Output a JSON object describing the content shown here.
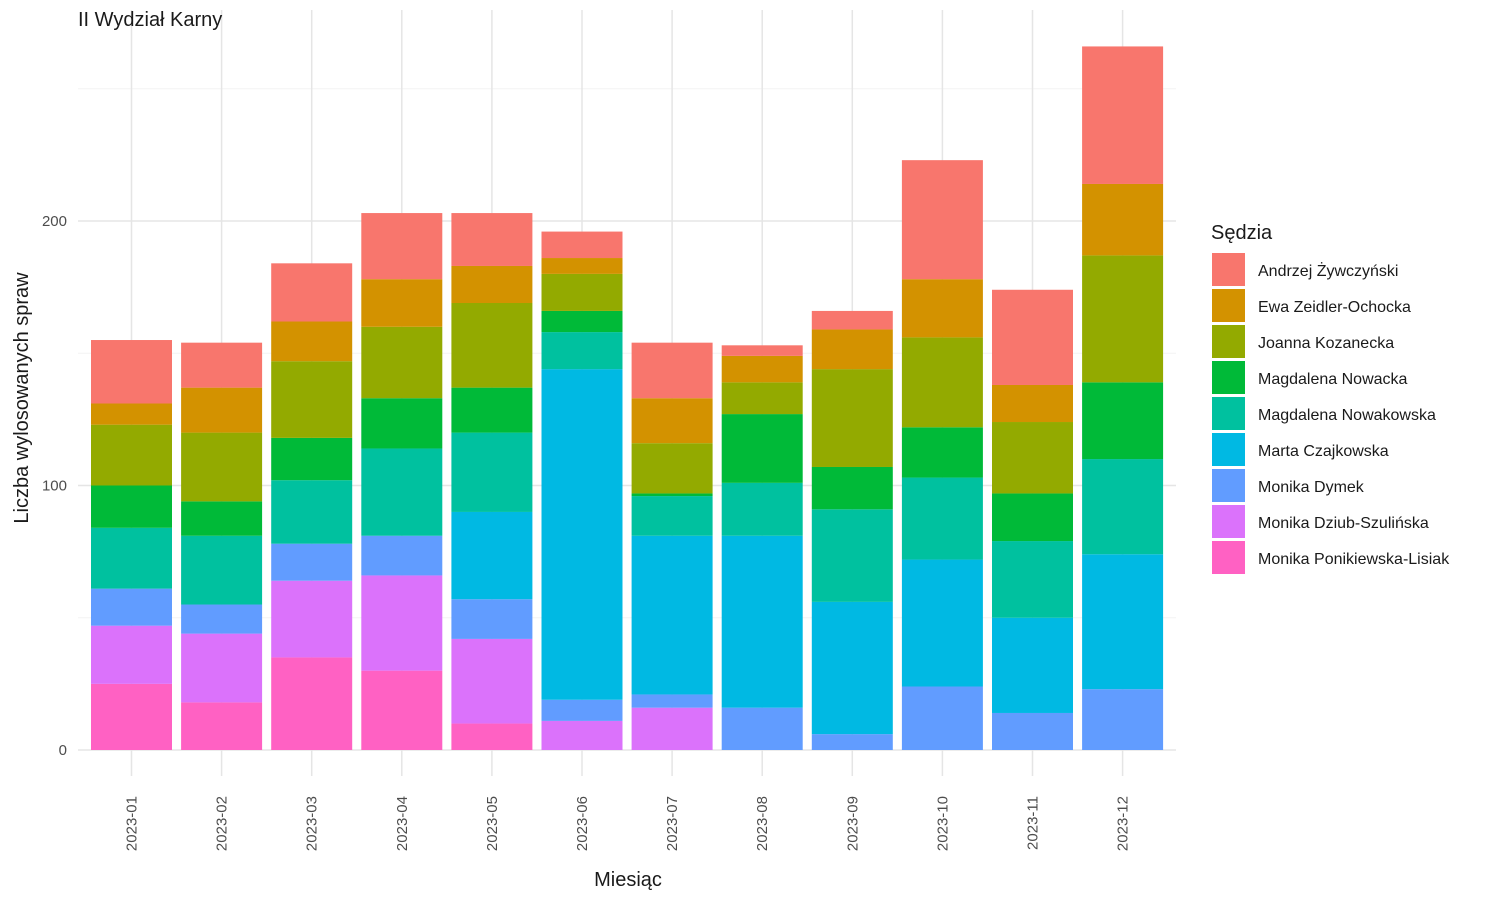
{
  "chart_data": {
    "type": "bar",
    "stacked": true,
    "title": "II Wydział Karny",
    "xlabel": "Miesiąc",
    "ylabel": "Liczba wylosowanych spraw",
    "ylim": [
      0,
      270
    ],
    "yticks": [
      0,
      100,
      200
    ],
    "grid": true,
    "legend_title": "Sędzia",
    "legend_position": "right",
    "categories": [
      "2023-01",
      "2023-02",
      "2023-03",
      "2023-04",
      "2023-05",
      "2023-06",
      "2023-07",
      "2023-08",
      "2023-09",
      "2023-10",
      "2023-11",
      "2023-12"
    ],
    "series": [
      {
        "name": "Andrzej Żywczyński",
        "color": "#F8766D",
        "values": [
          24,
          17,
          22,
          25,
          20,
          10,
          21,
          4,
          7,
          45,
          36,
          52
        ]
      },
      {
        "name": "Ewa Zeidler-Ochocka",
        "color": "#D39200",
        "values": [
          8,
          17,
          15,
          18,
          14,
          6,
          17,
          10,
          15,
          22,
          14,
          27
        ]
      },
      {
        "name": "Joanna Kozanecka",
        "color": "#93AA00",
        "values": [
          23,
          26,
          29,
          27,
          32,
          14,
          19,
          12,
          37,
          34,
          27,
          48
        ]
      },
      {
        "name": "Magdalena Nowacka",
        "color": "#00BA38",
        "values": [
          16,
          13,
          16,
          19,
          17,
          8,
          1,
          26,
          16,
          19,
          18,
          29
        ]
      },
      {
        "name": "Magdalena Nowakowska",
        "color": "#00C19F",
        "values": [
          23,
          26,
          24,
          33,
          30,
          14,
          15,
          20,
          35,
          31,
          29,
          36
        ]
      },
      {
        "name": "Marta Czajkowska",
        "color": "#00B9E3",
        "values": [
          0,
          0,
          0,
          0,
          33,
          125,
          60,
          65,
          50,
          48,
          36,
          51
        ]
      },
      {
        "name": "Monika Dymek",
        "color": "#619CFF",
        "values": [
          14,
          11,
          14,
          15,
          15,
          8,
          5,
          16,
          6,
          24,
          14,
          23
        ]
      },
      {
        "name": "Monika Dziub-Szulińska",
        "color": "#DB72FB",
        "values": [
          22,
          26,
          29,
          36,
          32,
          11,
          16,
          0,
          0,
          0,
          0,
          0
        ]
      },
      {
        "name": "Monika Ponikiewska-Lisiak",
        "color": "#FF61C3",
        "values": [
          25,
          18,
          35,
          30,
          10,
          0,
          0,
          0,
          0,
          0,
          0,
          0
        ]
      }
    ]
  }
}
